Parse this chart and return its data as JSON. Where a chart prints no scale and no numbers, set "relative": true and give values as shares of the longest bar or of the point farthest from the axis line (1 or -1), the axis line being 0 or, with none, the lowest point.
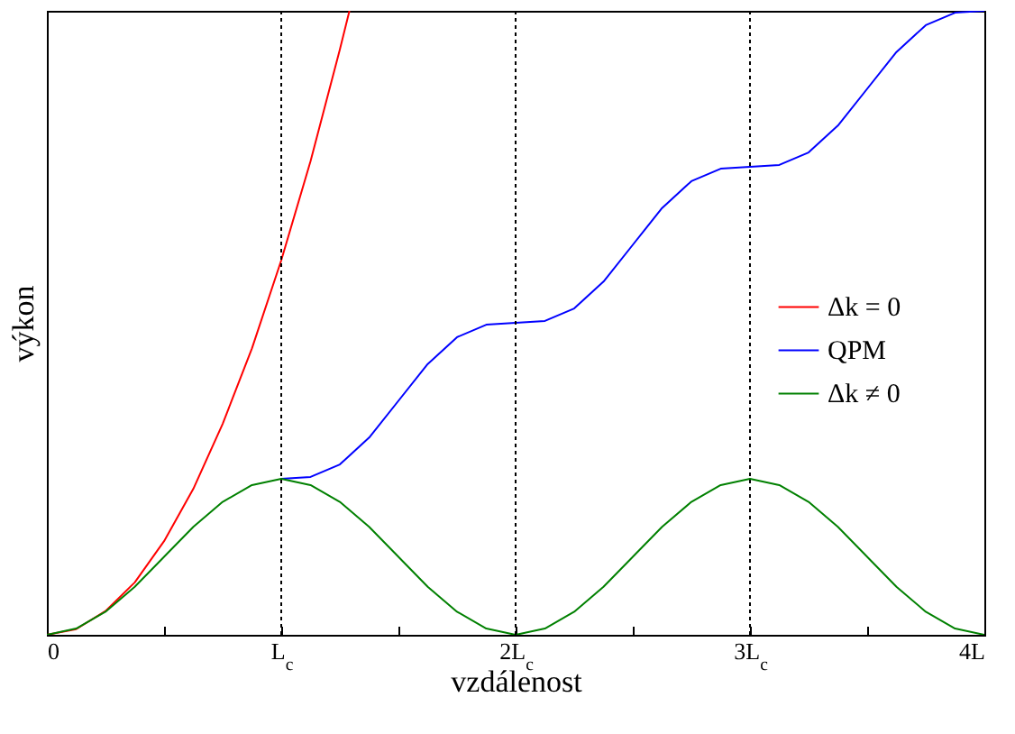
{
  "chart_data": {
    "type": "line",
    "xlabel": "vzdálenost",
    "ylabel": "výkon",
    "relative": true,
    "xlim": [
      0,
      4
    ],
    "xticks": [
      0,
      {
        "value": 0.5,
        "label": null
      },
      {
        "value": 1,
        "label": "L$_{c}$"
      },
      {
        "value": 1.5,
        "label": null
      },
      {
        "value": 2,
        "label": "2L$_{c}$"
      },
      {
        "value": 2.5,
        "label": null
      },
      {
        "value": 3,
        "label": "3L$_{c}$"
      },
      {
        "value": 3.5,
        "label": null
      },
      {
        "value": 4,
        "label": "4L"
      }
    ],
    "tick_labels": "x",
    "grid": false,
    "legend": "right",
    "line_style": "solid",
    "marker": "none",
    "series": [
      {
        "name": "Δk = 0",
        "color": "#ff0000",
        "x": [
          0,
          0.125,
          0.25,
          0.375,
          0.5,
          0.625,
          0.75,
          0.875,
          1,
          1.125,
          1.25,
          1.291
        ],
        "values": [
          0,
          0.009,
          0.038,
          0.084,
          0.15,
          0.234,
          0.338,
          0.459,
          0.6,
          0.759,
          0.938,
          1.0
        ]
      },
      {
        "name": "QPM",
        "color": "#0000ff",
        "x": [
          1,
          1.125,
          1.25,
          1.375,
          1.5,
          1.625,
          1.75,
          1.875,
          2,
          2.125,
          2.25,
          2.375,
          2.5,
          2.625,
          2.75,
          2.875,
          3,
          3.125,
          3.25,
          3.375,
          3.5,
          3.625,
          3.75,
          3.875,
          4
        ],
        "values": [
          0.25,
          0.253,
          0.273,
          0.316,
          0.375,
          0.434,
          0.477,
          0.497,
          0.5,
          0.503,
          0.523,
          0.566,
          0.625,
          0.684,
          0.727,
          0.747,
          0.75,
          0.753,
          0.773,
          0.816,
          0.875,
          0.934,
          0.977,
          0.997,
          1.0
        ]
      },
      {
        "name": "Δk ≠ 0",
        "color": "#008000",
        "x": [
          0,
          0.125,
          0.25,
          0.375,
          0.5,
          0.625,
          0.75,
          0.875,
          1,
          1.125,
          1.25,
          1.375,
          1.5,
          1.625,
          1.75,
          1.875,
          2,
          2.125,
          2.25,
          2.375,
          2.5,
          2.625,
          2.75,
          2.875,
          3,
          3.125,
          3.25,
          3.375,
          3.5,
          3.625,
          3.75,
          3.875,
          4
        ],
        "values": [
          0,
          0.01,
          0.037,
          0.077,
          0.125,
          0.173,
          0.213,
          0.24,
          0.25,
          0.24,
          0.213,
          0.173,
          0.125,
          0.077,
          0.037,
          0.01,
          0,
          0.01,
          0.037,
          0.077,
          0.125,
          0.173,
          0.213,
          0.24,
          0.25,
          0.24,
          0.213,
          0.173,
          0.125,
          0.077,
          0.037,
          0.01,
          0
        ]
      }
    ],
    "ref_lines": [
      {
        "axis": "x",
        "value": 1,
        "color": "#000000",
        "line_style": "dotted"
      },
      {
        "axis": "x",
        "value": 2,
        "color": "#000000",
        "line_style": "dotted"
      },
      {
        "axis": "x",
        "value": 3,
        "color": "#000000",
        "line_style": "dotted"
      }
    ]
  }
}
